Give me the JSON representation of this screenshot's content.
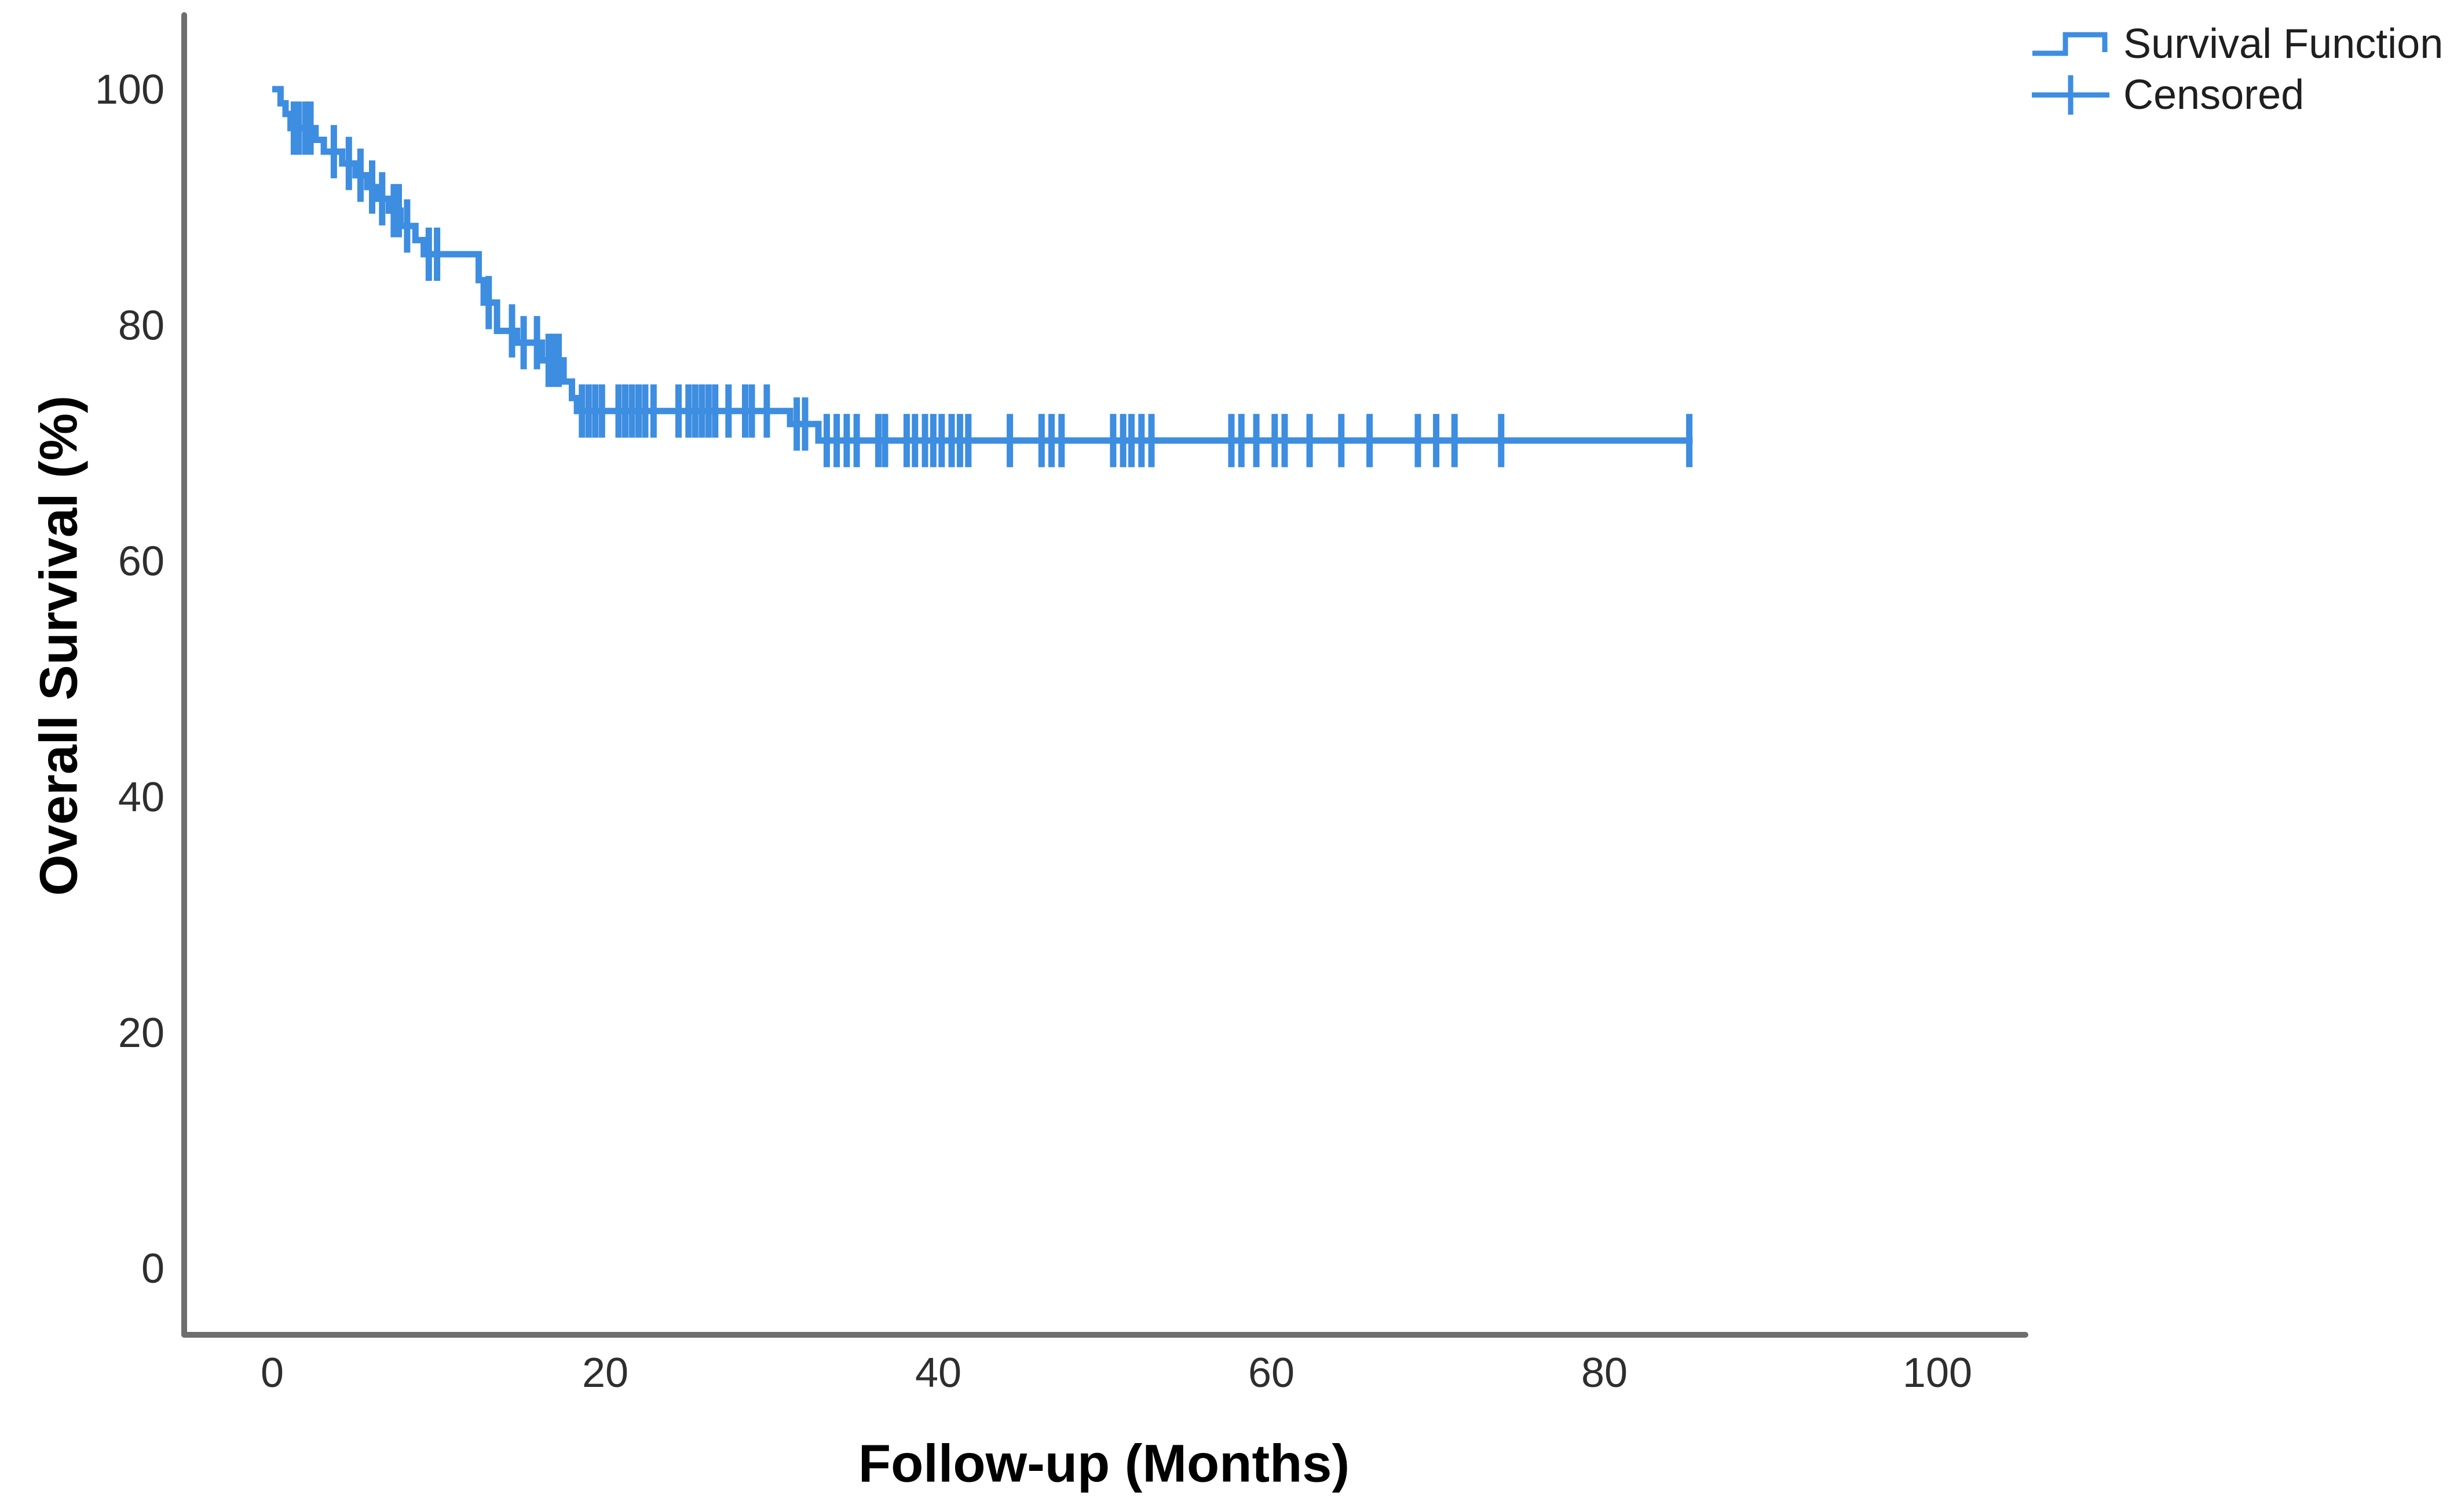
{
  "figure": {
    "y_axis_title": "Overall Survival (%)",
    "x_axis_title": "Follow-up (Months)",
    "background_color": "#ffffff"
  },
  "legend": {
    "items": [
      {
        "label": "Survival Function",
        "symbol": "step-line-icon"
      },
      {
        "label": "Censored",
        "symbol": "plus-cross-icon"
      }
    ]
  },
  "chart_data": {
    "type": "line",
    "subtype": "kaplan-meier-step",
    "title": "",
    "xlabel": "Follow-up (Months)",
    "ylabel": "Overall Survival (%)",
    "xlim": [
      0,
      105
    ],
    "ylim": [
      -7,
      103
    ],
    "x_ticks": [
      0,
      20,
      40,
      60,
      80,
      100
    ],
    "y_ticks": [
      0,
      20,
      40,
      60,
      80,
      100
    ],
    "grid": false,
    "legend_position": "top-right",
    "series_color": "#3D8DE0",
    "axis_color": "#6E6E6E",
    "tick_label_color": "#2e2e2e",
    "curve_end_month": 85.3,
    "survival_steps": [
      [
        0.0,
        100.0
      ],
      [
        0.5,
        98.8
      ],
      [
        0.8,
        97.9
      ],
      [
        1.1,
        96.7
      ],
      [
        2.6,
        95.7
      ],
      [
        3.1,
        94.7
      ],
      [
        4.2,
        93.7
      ],
      [
        5.0,
        92.7
      ],
      [
        5.7,
        91.7
      ],
      [
        6.3,
        90.7
      ],
      [
        7.0,
        89.7
      ],
      [
        7.7,
        88.4
      ],
      [
        8.6,
        87.2
      ],
      [
        9.1,
        86.0
      ],
      [
        12.4,
        83.8
      ],
      [
        12.7,
        81.9
      ],
      [
        13.5,
        79.5
      ],
      [
        14.7,
        78.5
      ],
      [
        16.2,
        77.0
      ],
      [
        17.5,
        75.2
      ],
      [
        18.0,
        73.8
      ],
      [
        18.3,
        72.7
      ],
      [
        31.1,
        71.6
      ],
      [
        32.8,
        70.2
      ]
    ],
    "censored": [
      [
        1.3,
        96.7
      ],
      [
        1.6,
        96.7
      ],
      [
        2.0,
        96.7
      ],
      [
        2.3,
        96.7
      ],
      [
        3.7,
        94.7
      ],
      [
        4.6,
        93.7
      ],
      [
        5.3,
        92.7
      ],
      [
        6.0,
        91.7
      ],
      [
        6.6,
        90.7
      ],
      [
        7.3,
        89.7
      ],
      [
        7.6,
        89.7
      ],
      [
        8.1,
        88.4
      ],
      [
        9.4,
        86.0
      ],
      [
        9.9,
        86.0
      ],
      [
        13.0,
        81.9
      ],
      [
        14.4,
        79.5
      ],
      [
        15.1,
        78.5
      ],
      [
        15.9,
        78.5
      ],
      [
        16.6,
        77.0
      ],
      [
        16.9,
        77.0
      ],
      [
        17.2,
        77.0
      ],
      [
        18.6,
        72.7
      ],
      [
        19.0,
        72.7
      ],
      [
        19.4,
        72.7
      ],
      [
        19.8,
        72.7
      ],
      [
        20.8,
        72.7
      ],
      [
        21.2,
        72.7
      ],
      [
        21.6,
        72.7
      ],
      [
        22.0,
        72.7
      ],
      [
        22.4,
        72.7
      ],
      [
        22.9,
        72.7
      ],
      [
        24.4,
        72.7
      ],
      [
        25.0,
        72.7
      ],
      [
        25.4,
        72.7
      ],
      [
        25.8,
        72.7
      ],
      [
        26.2,
        72.7
      ],
      [
        26.6,
        72.7
      ],
      [
        27.4,
        72.7
      ],
      [
        28.4,
        72.7
      ],
      [
        28.8,
        72.7
      ],
      [
        29.7,
        72.7
      ],
      [
        31.5,
        71.6
      ],
      [
        32.0,
        71.6
      ],
      [
        33.3,
        70.2
      ],
      [
        33.9,
        70.2
      ],
      [
        34.5,
        70.2
      ],
      [
        35.1,
        70.2
      ],
      [
        36.4,
        70.2
      ],
      [
        36.8,
        70.2
      ],
      [
        38.1,
        70.2
      ],
      [
        38.6,
        70.2
      ],
      [
        39.2,
        70.2
      ],
      [
        39.7,
        70.2
      ],
      [
        40.2,
        70.2
      ],
      [
        40.8,
        70.2
      ],
      [
        41.3,
        70.2
      ],
      [
        41.8,
        70.2
      ],
      [
        44.3,
        70.2
      ],
      [
        46.2,
        70.2
      ],
      [
        46.8,
        70.2
      ],
      [
        47.4,
        70.2
      ],
      [
        50.5,
        70.2
      ],
      [
        51.1,
        70.2
      ],
      [
        51.6,
        70.2
      ],
      [
        52.2,
        70.2
      ],
      [
        52.8,
        70.2
      ],
      [
        57.6,
        70.2
      ],
      [
        58.2,
        70.2
      ],
      [
        59.1,
        70.2
      ],
      [
        60.2,
        70.2
      ],
      [
        60.8,
        70.2
      ],
      [
        62.3,
        70.2
      ],
      [
        64.2,
        70.2
      ],
      [
        65.9,
        70.2
      ],
      [
        68.8,
        70.2
      ],
      [
        69.9,
        70.2
      ],
      [
        71.0,
        70.2
      ],
      [
        73.8,
        70.2
      ],
      [
        85.1,
        70.2
      ]
    ]
  }
}
